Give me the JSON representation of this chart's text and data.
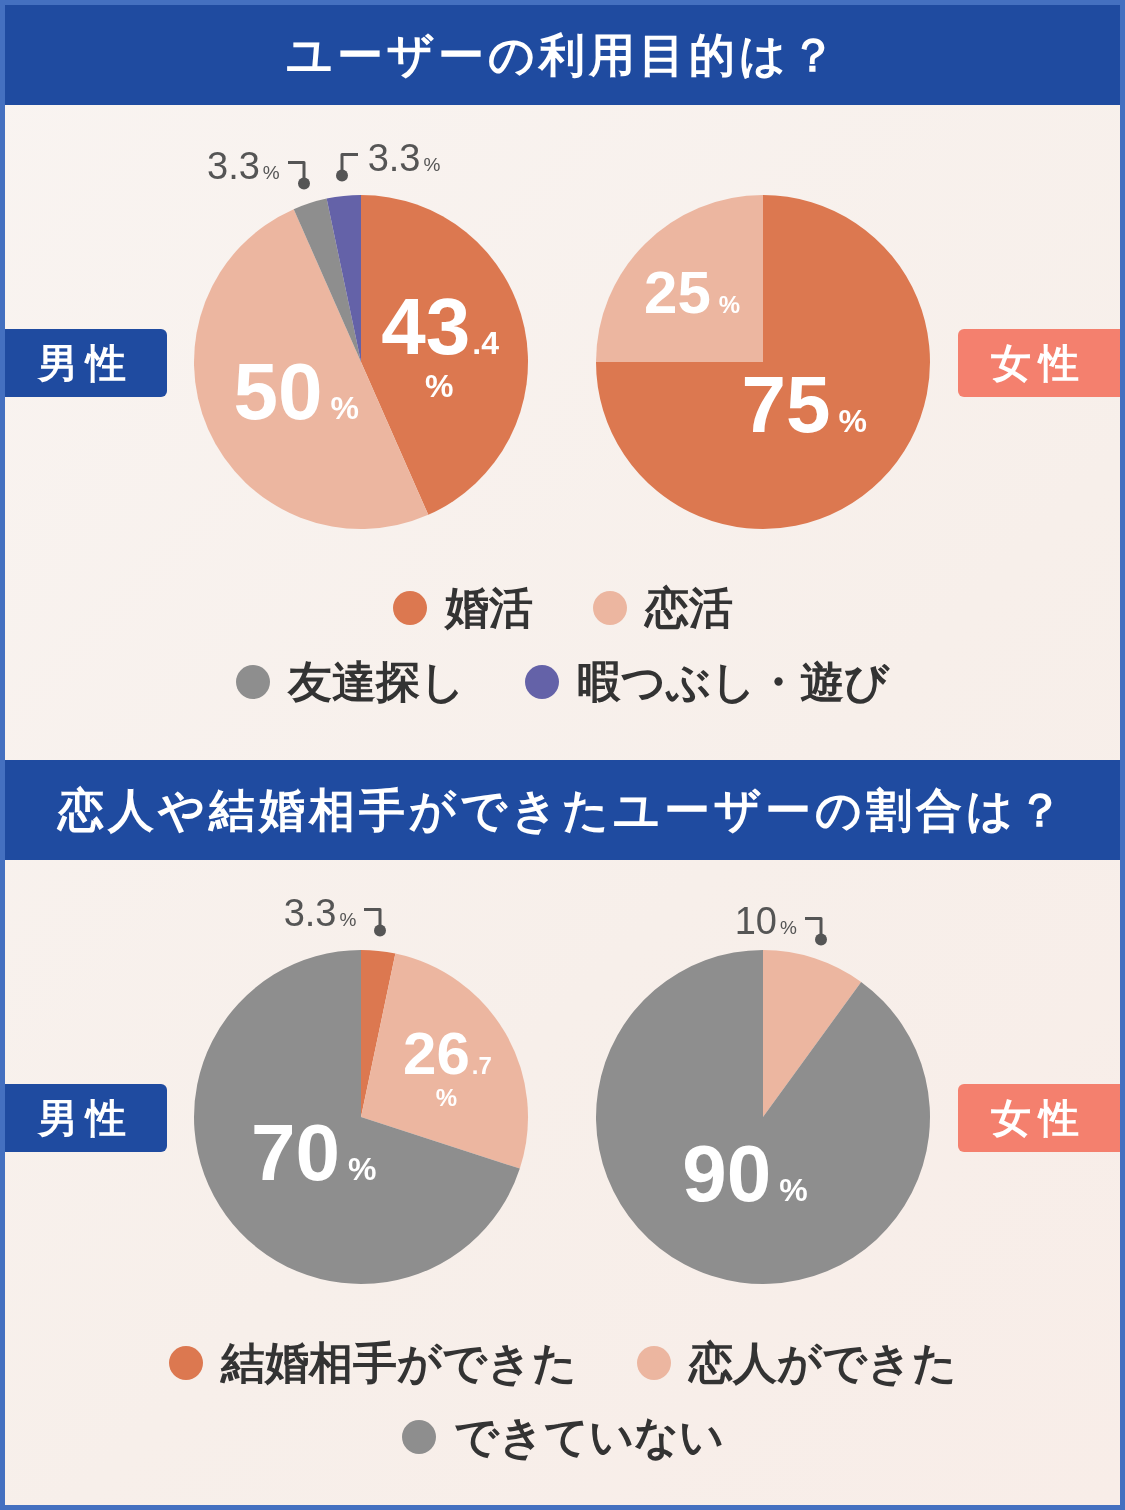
{
  "chart_data": [
    {
      "type": "pie",
      "title": "ユーザーの利用目的は？",
      "categories": [
        "婚活",
        "恋活",
        "友達探し",
        "暇つぶし・遊び"
      ],
      "colors": [
        "#dc7850",
        "#ecb6a0",
        "#8e8e8e",
        "#6462a8"
      ],
      "series": [
        {
          "name": "男性",
          "values": [
            43.4,
            50,
            3.3,
            3.3
          ],
          "value_labels": [
            "43.4%",
            "50%",
            "3.3%",
            "3.3%"
          ]
        },
        {
          "name": "女性",
          "values": [
            75,
            25,
            null,
            null
          ],
          "value_labels": [
            "75%",
            "25%",
            null,
            null
          ]
        }
      ],
      "legend": "bottom"
    },
    {
      "type": "pie",
      "title": "恋人や結婚相手ができたユーザーの割合は？",
      "categories": [
        "結婚相手ができた",
        "恋人ができた",
        "できていない"
      ],
      "colors": [
        "#dc7850",
        "#ecb6a0",
        "#8e8e8e"
      ],
      "series": [
        {
          "name": "男性",
          "values": [
            3.3,
            26.7,
            70
          ],
          "value_labels": [
            "3.3%",
            "26.7%",
            "70%"
          ]
        },
        {
          "name": "女性",
          "values": [
            null,
            10,
            90
          ],
          "value_labels": [
            null,
            "10%",
            "90%"
          ]
        }
      ],
      "legend": "bottom"
    }
  ]
}
